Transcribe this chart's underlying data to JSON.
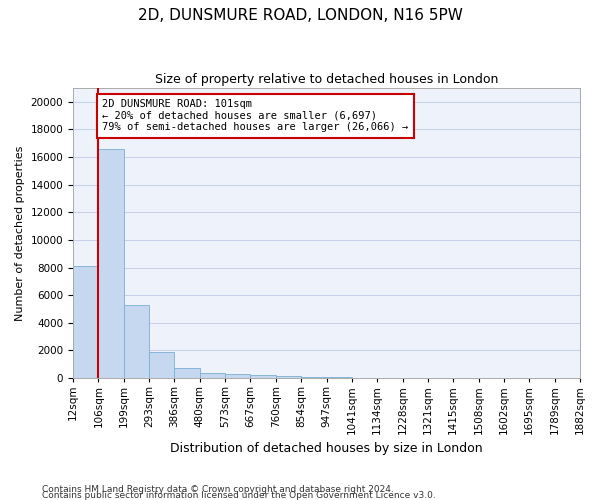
{
  "title": "2D, DUNSMURE ROAD, LONDON, N16 5PW",
  "subtitle": "Size of property relative to detached houses in London",
  "xlabel": "Distribution of detached houses by size in London",
  "ylabel": "Number of detached properties",
  "bin_labels": [
    "12sqm",
    "106sqm",
    "199sqm",
    "293sqm",
    "386sqm",
    "480sqm",
    "573sqm",
    "667sqm",
    "760sqm",
    "854sqm",
    "947sqm",
    "1041sqm",
    "1134sqm",
    "1228sqm",
    "1321sqm",
    "1415sqm",
    "1508sqm",
    "1602sqm",
    "1695sqm",
    "1789sqm",
    "1882sqm"
  ],
  "bar_heights": [
    8100,
    16600,
    5300,
    1850,
    700,
    350,
    270,
    200,
    170,
    80,
    50,
    30,
    20,
    15,
    10,
    8,
    6,
    5,
    4,
    3
  ],
  "bar_color": "#c5d8f0",
  "bar_edge_color": "#7bafd4",
  "vline_color": "#cc0000",
  "vline_x": 1.0,
  "annotation_text": "2D DUNSMURE ROAD: 101sqm\n← 20% of detached houses are smaller (6,697)\n79% of semi-detached houses are larger (26,066) →",
  "annotation_box_facecolor": "#ffffff",
  "annotation_box_edgecolor": "#cc0000",
  "ylim": [
    0,
    21000
  ],
  "yticks": [
    0,
    2000,
    4000,
    6000,
    8000,
    10000,
    12000,
    14000,
    16000,
    18000,
    20000
  ],
  "background_color": "#eef2fa",
  "grid_color": "#c5cfe8",
  "footer_line1": "Contains HM Land Registry data © Crown copyright and database right 2024.",
  "footer_line2": "Contains public sector information licensed under the Open Government Licence v3.0.",
  "title_fontsize": 11,
  "subtitle_fontsize": 9,
  "ylabel_fontsize": 8,
  "xlabel_fontsize": 9,
  "tick_fontsize": 7.5,
  "annotation_fontsize": 7.5,
  "footer_fontsize": 6.5
}
